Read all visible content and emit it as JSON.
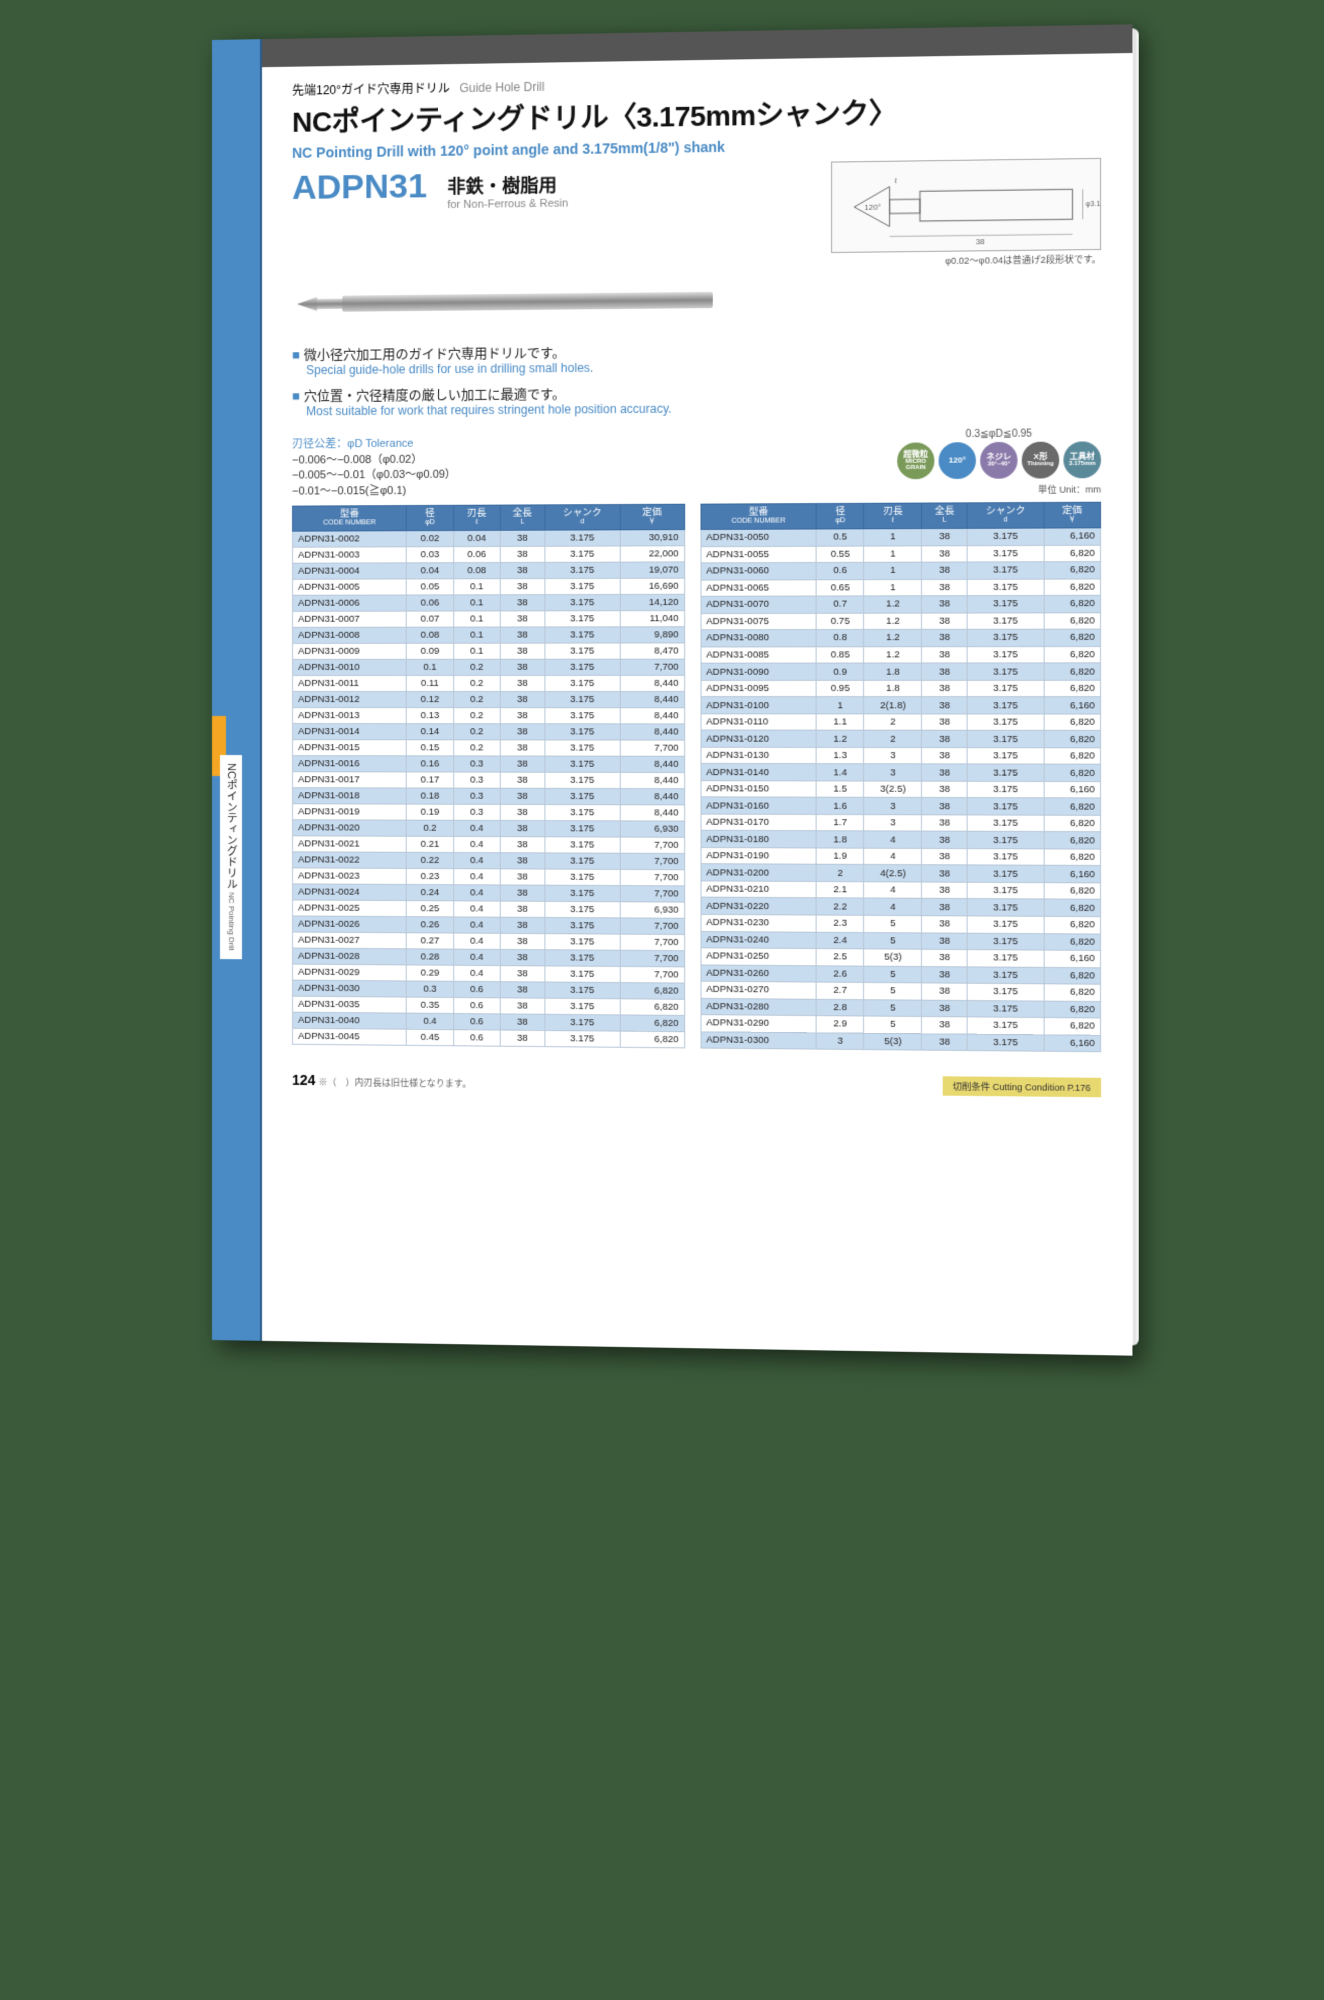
{
  "spine": {
    "title_jp": "NCポインティングドリル",
    "title_en": "NC Pointing Drill"
  },
  "header": {
    "subtitle_jp": "先端120°ガイド穴専用ドリル",
    "subtitle_en": "Guide Hole Drill",
    "title": "NCポインティングドリル〈3.175mmシャンク〉",
    "en_title": "NC Pointing Drill with 120° point angle and 3.175mm(1/8\") shank",
    "code": "ADPN31",
    "usage_jp": "非鉄・樹脂用",
    "usage_en": "for Non-Ferrous & Resin",
    "drawing_note": "φ0.02～φ0.04は普通げ2段形状です。"
  },
  "features": [
    {
      "jp": "微小径穴加工用のガイド穴専用ドリルです。",
      "en": "Special guide-hole drills for use in drilling small holes."
    },
    {
      "jp": "穴位置・穴径精度の厳しい加工に最適です。",
      "en": "Most suitable for work that requires stringent hole position accuracy."
    }
  ],
  "tolerance": {
    "label": "刃径公差：φD Tolerance",
    "lines": [
      "−0.006～−0.008（φ0.02）",
      "−0.005～−0.01（φ0.03～φ0.09）",
      "−0.01～−0.015(≧φ0.1)"
    ]
  },
  "range_note": "0.3≦φD≦0.95",
  "unit_note": "単位 Unit：mm",
  "badges": [
    {
      "label": "超微粒",
      "sub": "MICRO GRAIN",
      "bg": "#7a9a5a"
    },
    {
      "label": "120°",
      "sub": "",
      "bg": "#4a8bc5"
    },
    {
      "label": "ネジレ",
      "sub": "30°~40°",
      "bg": "#8a7aaa"
    },
    {
      "label": "X形",
      "sub": "Thinning",
      "bg": "#6a6a6a"
    },
    {
      "label": "工具材",
      "sub": "3.175mm",
      "bg": "#5a8a9a"
    }
  ],
  "table_headers": [
    {
      "jp": "型番",
      "en": "CODE NUMBER"
    },
    {
      "jp": "径",
      "en": "φD"
    },
    {
      "jp": "刃長",
      "en": "ℓ"
    },
    {
      "jp": "全長",
      "en": "L"
    },
    {
      "jp": "シャンク",
      "en": "d"
    },
    {
      "jp": "定価",
      "en": "￥"
    }
  ],
  "table1": [
    [
      "ADPN31-0002",
      "0.02",
      "0.04",
      "38",
      "3.175",
      "30,910"
    ],
    [
      "ADPN31-0003",
      "0.03",
      "0.06",
      "38",
      "3.175",
      "22,000"
    ],
    [
      "ADPN31-0004",
      "0.04",
      "0.08",
      "38",
      "3.175",
      "19,070"
    ],
    [
      "ADPN31-0005",
      "0.05",
      "0.1",
      "38",
      "3.175",
      "16,690"
    ],
    [
      "ADPN31-0006",
      "0.06",
      "0.1",
      "38",
      "3.175",
      "14,120"
    ],
    [
      "ADPN31-0007",
      "0.07",
      "0.1",
      "38",
      "3.175",
      "11,040"
    ],
    [
      "ADPN31-0008",
      "0.08",
      "0.1",
      "38",
      "3.175",
      "9,890"
    ],
    [
      "ADPN31-0009",
      "0.09",
      "0.1",
      "38",
      "3.175",
      "8,470"
    ],
    [
      "ADPN31-0010",
      "0.1",
      "0.2",
      "38",
      "3.175",
      "7,700"
    ],
    [
      "ADPN31-0011",
      "0.11",
      "0.2",
      "38",
      "3.175",
      "8,440"
    ],
    [
      "ADPN31-0012",
      "0.12",
      "0.2",
      "38",
      "3.175",
      "8,440"
    ],
    [
      "ADPN31-0013",
      "0.13",
      "0.2",
      "38",
      "3.175",
      "8,440"
    ],
    [
      "ADPN31-0014",
      "0.14",
      "0.2",
      "38",
      "3.175",
      "8,440"
    ],
    [
      "ADPN31-0015",
      "0.15",
      "0.2",
      "38",
      "3.175",
      "7,700"
    ],
    [
      "ADPN31-0016",
      "0.16",
      "0.3",
      "38",
      "3.175",
      "8,440"
    ],
    [
      "ADPN31-0017",
      "0.17",
      "0.3",
      "38",
      "3.175",
      "8,440"
    ],
    [
      "ADPN31-0018",
      "0.18",
      "0.3",
      "38",
      "3.175",
      "8,440"
    ],
    [
      "ADPN31-0019",
      "0.19",
      "0.3",
      "38",
      "3.175",
      "8,440"
    ],
    [
      "ADPN31-0020",
      "0.2",
      "0.4",
      "38",
      "3.175",
      "6,930"
    ],
    [
      "ADPN31-0021",
      "0.21",
      "0.4",
      "38",
      "3.175",
      "7,700"
    ],
    [
      "ADPN31-0022",
      "0.22",
      "0.4",
      "38",
      "3.175",
      "7,700"
    ],
    [
      "ADPN31-0023",
      "0.23",
      "0.4",
      "38",
      "3.175",
      "7,700"
    ],
    [
      "ADPN31-0024",
      "0.24",
      "0.4",
      "38",
      "3.175",
      "7,700"
    ],
    [
      "ADPN31-0025",
      "0.25",
      "0.4",
      "38",
      "3.175",
      "6,930"
    ],
    [
      "ADPN31-0026",
      "0.26",
      "0.4",
      "38",
      "3.175",
      "7,700"
    ],
    [
      "ADPN31-0027",
      "0.27",
      "0.4",
      "38",
      "3.175",
      "7,700"
    ],
    [
      "ADPN31-0028",
      "0.28",
      "0.4",
      "38",
      "3.175",
      "7,700"
    ],
    [
      "ADPN31-0029",
      "0.29",
      "0.4",
      "38",
      "3.175",
      "7,700"
    ],
    [
      "ADPN31-0030",
      "0.3",
      "0.6",
      "38",
      "3.175",
      "6,820"
    ],
    [
      "ADPN31-0035",
      "0.35",
      "0.6",
      "38",
      "3.175",
      "6,820"
    ],
    [
      "ADPN31-0040",
      "0.4",
      "0.6",
      "38",
      "3.175",
      "6,820"
    ],
    [
      "ADPN31-0045",
      "0.45",
      "0.6",
      "38",
      "3.175",
      "6,820"
    ]
  ],
  "table2": [
    [
      "ADPN31-0050",
      "0.5",
      "1",
      "38",
      "3.175",
      "6,160"
    ],
    [
      "ADPN31-0055",
      "0.55",
      "1",
      "38",
      "3.175",
      "6,820"
    ],
    [
      "ADPN31-0060",
      "0.6",
      "1",
      "38",
      "3.175",
      "6,820"
    ],
    [
      "ADPN31-0065",
      "0.65",
      "1",
      "38",
      "3.175",
      "6,820"
    ],
    [
      "ADPN31-0070",
      "0.7",
      "1.2",
      "38",
      "3.175",
      "6,820"
    ],
    [
      "ADPN31-0075",
      "0.75",
      "1.2",
      "38",
      "3.175",
      "6,820"
    ],
    [
      "ADPN31-0080",
      "0.8",
      "1.2",
      "38",
      "3.175",
      "6,820"
    ],
    [
      "ADPN31-0085",
      "0.85",
      "1.2",
      "38",
      "3.175",
      "6,820"
    ],
    [
      "ADPN31-0090",
      "0.9",
      "1.8",
      "38",
      "3.175",
      "6,820"
    ],
    [
      "ADPN31-0095",
      "0.95",
      "1.8",
      "38",
      "3.175",
      "6,820"
    ],
    [
      "ADPN31-0100",
      "1",
      "2(1.8)",
      "38",
      "3.175",
      "6,160"
    ],
    [
      "ADPN31-0110",
      "1.1",
      "2",
      "38",
      "3.175",
      "6,820"
    ],
    [
      "ADPN31-0120",
      "1.2",
      "2",
      "38",
      "3.175",
      "6,820"
    ],
    [
      "ADPN31-0130",
      "1.3",
      "3",
      "38",
      "3.175",
      "6,820"
    ],
    [
      "ADPN31-0140",
      "1.4",
      "3",
      "38",
      "3.175",
      "6,820"
    ],
    [
      "ADPN31-0150",
      "1.5",
      "3(2.5)",
      "38",
      "3.175",
      "6,160"
    ],
    [
      "ADPN31-0160",
      "1.6",
      "3",
      "38",
      "3.175",
      "6,820"
    ],
    [
      "ADPN31-0170",
      "1.7",
      "3",
      "38",
      "3.175",
      "6,820"
    ],
    [
      "ADPN31-0180",
      "1.8",
      "4",
      "38",
      "3.175",
      "6,820"
    ],
    [
      "ADPN31-0190",
      "1.9",
      "4",
      "38",
      "3.175",
      "6,820"
    ],
    [
      "ADPN31-0200",
      "2",
      "4(2.5)",
      "38",
      "3.175",
      "6,160"
    ],
    [
      "ADPN31-0210",
      "2.1",
      "4",
      "38",
      "3.175",
      "6,820"
    ],
    [
      "ADPN31-0220",
      "2.2",
      "4",
      "38",
      "3.175",
      "6,820"
    ],
    [
      "ADPN31-0230",
      "2.3",
      "5",
      "38",
      "3.175",
      "6,820"
    ],
    [
      "ADPN31-0240",
      "2.4",
      "5",
      "38",
      "3.175",
      "6,820"
    ],
    [
      "ADPN31-0250",
      "2.5",
      "5(3)",
      "38",
      "3.175",
      "6,160"
    ],
    [
      "ADPN31-0260",
      "2.6",
      "5",
      "38",
      "3.175",
      "6,820"
    ],
    [
      "ADPN31-0270",
      "2.7",
      "5",
      "38",
      "3.175",
      "6,820"
    ],
    [
      "ADPN31-0280",
      "2.8",
      "5",
      "38",
      "3.175",
      "6,820"
    ],
    [
      "ADPN31-0290",
      "2.9",
      "5",
      "38",
      "3.175",
      "6,820"
    ],
    [
      "ADPN31-0300",
      "3",
      "5(3)",
      "38",
      "3.175",
      "6,160"
    ]
  ],
  "footer": {
    "page_num": "124",
    "footnote": "※（　）内刃長は旧仕様となります。",
    "cutting": "切削条件 Cutting Condition  P.176"
  },
  "colors": {
    "accent": "#4a8bc5",
    "header_bg": "#4a7bb0",
    "row_stripe": "#c8dcf0",
    "top_bar": "#555555"
  }
}
